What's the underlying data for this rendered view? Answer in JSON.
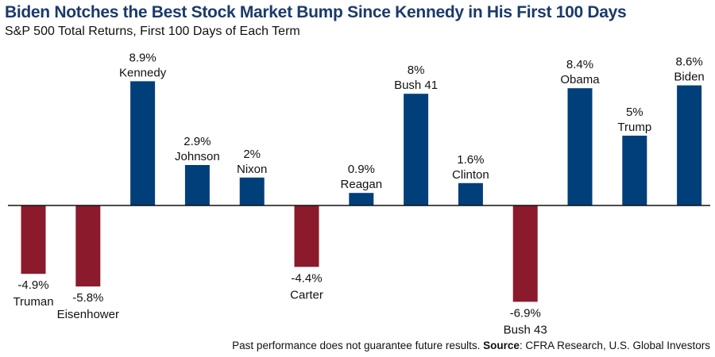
{
  "title": "Biden Notches the Best Stock Market Bump Since Kennedy in His First 100 Days",
  "subtitle": "S&P 500 Total Returns, First 100 Days of Each Term",
  "footnote": {
    "disclaimer": "Past performance does not guarantee future results.",
    "source_label": "Source",
    "source_text": ": CFRA Research, U.S. Global Investors"
  },
  "colors": {
    "positive": "#003f7a",
    "negative": "#8b1a2c",
    "title": "#1b3a6b",
    "baseline": "#111111"
  },
  "chart_data": {
    "type": "bar",
    "title": "Biden Notches the Best Stock Market Bump Since Kennedy in His First 100 Days",
    "subtitle": "S&P 500 Total Returns, First 100 Days of Each Term",
    "categories": [
      "Truman",
      "Eisenhower",
      "Kennedy",
      "Johnson",
      "Nixon",
      "Carter",
      "Reagan",
      "Bush 41",
      "Clinton",
      "Bush 43",
      "Obama",
      "Trump",
      "Biden"
    ],
    "values": [
      -4.9,
      -5.8,
      8.9,
      2.9,
      2.0,
      -4.4,
      0.9,
      8.0,
      1.6,
      -6.9,
      8.4,
      5.0,
      8.6
    ],
    "value_labels": [
      "-4.9%",
      "-5.8%",
      "8.9%",
      "2.9%",
      "2%",
      "-4.4%",
      "0.9%",
      "8%",
      "1.6%",
      "-6.9%",
      "8.4%",
      "5%",
      "8.6%"
    ],
    "unit": "%",
    "xlabel": "",
    "ylabel": "",
    "grid": false,
    "legend": false
  }
}
